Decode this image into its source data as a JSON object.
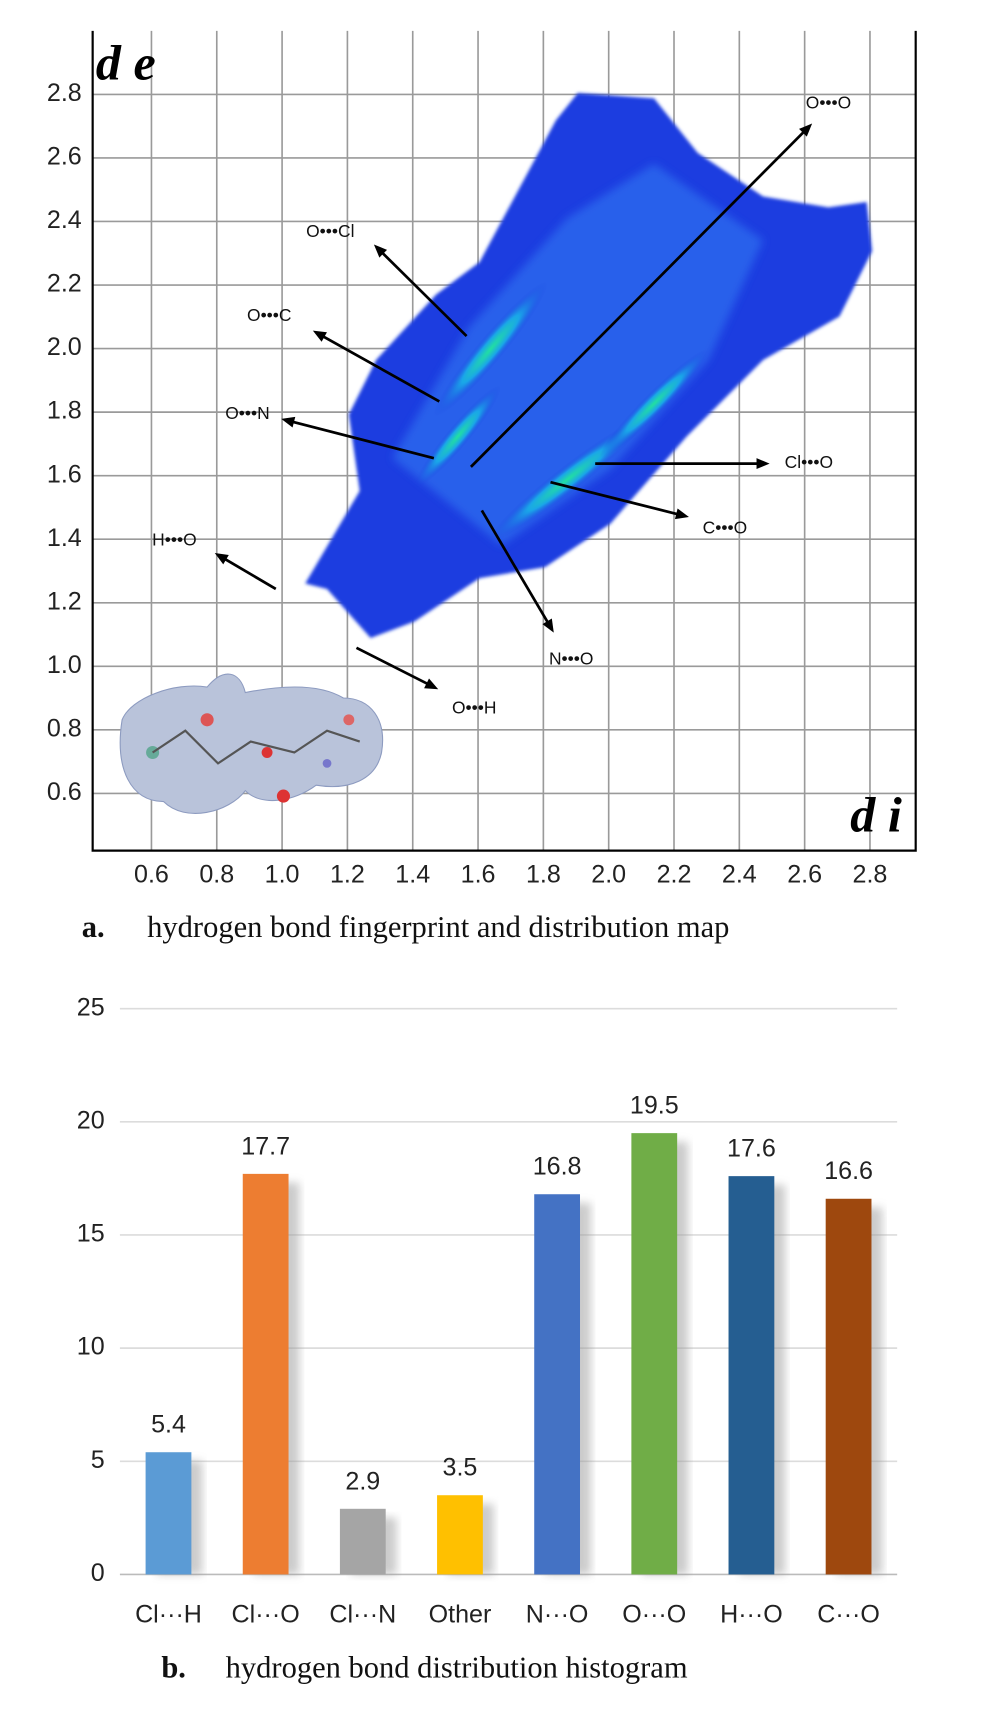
{
  "chart_data": [
    {
      "type": "fingerprint",
      "caption_letter": "a.",
      "caption": "hydrogen bond fingerprint and distribution map",
      "ylabel": "d e",
      "xlabel": "d i",
      "xlim": [
        0.42,
        2.94
      ],
      "ylim": [
        0.42,
        3.0
      ],
      "xticks": [
        0.6,
        0.8,
        {
          "value": 1,
          "label": "1.0"
        },
        1.2,
        1.4,
        1.6,
        1.8,
        {
          "value": 2,
          "label": "2.0"
        },
        2.2,
        2.4,
        2.6,
        2.8
      ],
      "yticks": [
        0.6,
        0.8,
        {
          "value": 1,
          "label": "1.0"
        },
        1.2,
        1.4,
        1.6,
        1.8,
        {
          "value": 2,
          "label": "2.0"
        },
        2.2,
        2.4,
        2.6,
        2.8
      ],
      "grid": true,
      "annotations": [
        "O•••O",
        "O•••Cl",
        "O•••C",
        "O•••N",
        "H•••O",
        "O•••H",
        "N•••O",
        "C•••O",
        "Cl•••O"
      ]
    },
    {
      "type": "bar",
      "caption_letter": "b.",
      "caption": "hydrogen bond distribution histogram",
      "categories": [
        "Cl···H",
        "Cl···O",
        "Cl···N",
        "Other",
        "N···O",
        "O···O",
        "H···O",
        "C···O"
      ],
      "values": [
        5.4,
        17.7,
        2.9,
        3.5,
        16.8,
        19.5,
        17.6,
        16.6
      ],
      "colors": [
        "#5b9bd5",
        "#ed7d31",
        "#a5a5a5",
        "#ffc000",
        "#4472c4",
        "#70ad47",
        "#255e91",
        "#9e480e"
      ],
      "ylim": [
        0,
        25
      ],
      "yticks": [
        0,
        5,
        10,
        15,
        20,
        25
      ],
      "grid": true
    }
  ]
}
